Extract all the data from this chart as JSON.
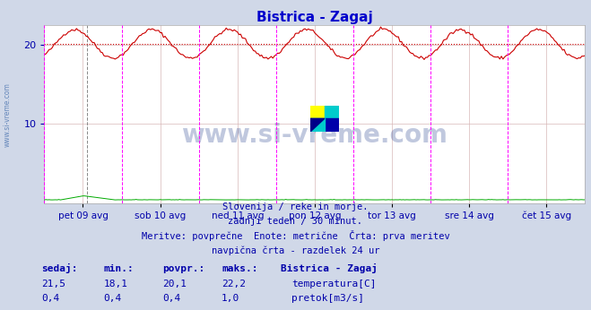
{
  "title": "Bistrica - Zagaj",
  "title_color": "#0000cc",
  "background_color": "#d0d8e8",
  "plot_bg_color": "#ffffff",
  "grid_color": "#d8b8b8",
  "x_labels": [
    "pet 09 avg",
    "sob 10 avg",
    "ned 11 avg",
    "pon 12 avg",
    "tor 13 avg",
    "sre 14 avg",
    "čet 15 avg"
  ],
  "n_points": 337,
  "temp_color": "#cc0000",
  "flow_color": "#00aa00",
  "avg_value": 20.1,
  "avg_line_color": "#cc0000",
  "vline_color": "#ff00ff",
  "vline_grey_color": "#888888",
  "y_ticks": [
    10,
    20
  ],
  "y_min": 0,
  "y_max": 22.5,
  "subtitle_lines": [
    "Slovenija / reke in morje.",
    "zadnji teden / 30 minut.",
    "Meritve: povprečne  Enote: metrične  Črta: prva meritev",
    "navpična črta - razdelek 24 ur"
  ],
  "stat_labels": [
    "sedaj:",
    "min.:",
    "povpr.:",
    "maks.:"
  ],
  "stat_color": "#0000aa",
  "legend_title": "Bistrica - Zagaj",
  "legend_entries": [
    "temperatura[C]",
    "pretok[m3/s]"
  ],
  "legend_colors": [
    "#cc0000",
    "#00aa00"
  ],
  "stat_temp": [
    "21,5",
    "18,1",
    "20,1",
    "22,2"
  ],
  "stat_flow": [
    "0,4",
    "0,4",
    "0,4",
    "1,0"
  ],
  "watermark_text": "www.si-vreme.com",
  "logo_colors": [
    "#ffff00",
    "#00cccc",
    "#0000aa"
  ],
  "sidebar_text": "www.si-vreme.com"
}
